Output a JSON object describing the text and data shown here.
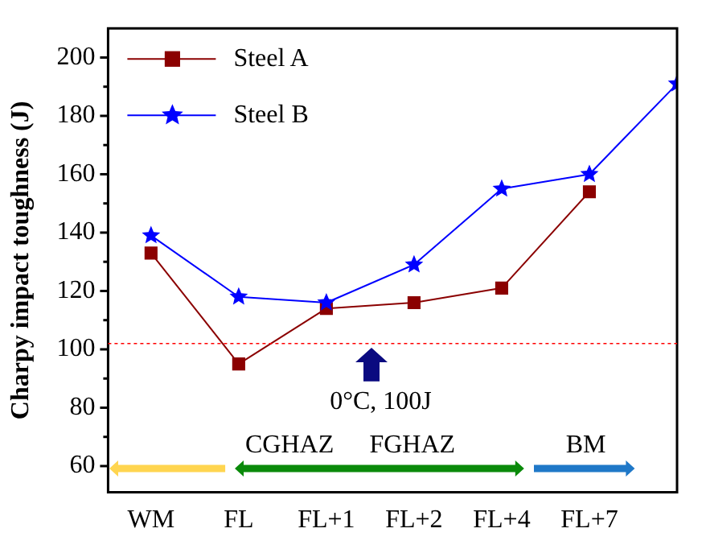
{
  "chart_data": {
    "type": "line",
    "ylabel": "Charpy impact toughness (J)",
    "categories": [
      "WM",
      "FL",
      "FL+1",
      "FL+2",
      "FL+4",
      "FL+7",
      null
    ],
    "series": [
      {
        "name": "Steel A",
        "color": "#8b0000",
        "marker": "square",
        "values": [
          133,
          95,
          114,
          116,
          121,
          154,
          null
        ]
      },
      {
        "name": "Steel B",
        "color": "#0000ff",
        "marker": "star",
        "values": [
          139,
          118,
          116,
          129,
          155,
          160,
          191
        ]
      }
    ],
    "ylim": [
      51,
      210
    ],
    "yticks": [
      60,
      {
        "value": 70,
        "label": null
      },
      80,
      {
        "value": 90,
        "label": null
      },
      100,
      {
        "value": 110,
        "label": null
      },
      120,
      {
        "value": 130,
        "label": null
      },
      140,
      {
        "value": 150,
        "label": null
      },
      160,
      {
        "value": 170,
        "label": null
      },
      180,
      {
        "value": 190,
        "label": null
      },
      200
    ],
    "ref_lines": [
      {
        "axis": "y",
        "value": 102,
        "label": "0°C, 100J",
        "color": "#ff0000",
        "line_style": "dotted"
      }
    ],
    "annotations": [
      "CGHAZ",
      "FGHAZ",
      "BM"
    ],
    "legend": "top left",
    "grid": false
  }
}
